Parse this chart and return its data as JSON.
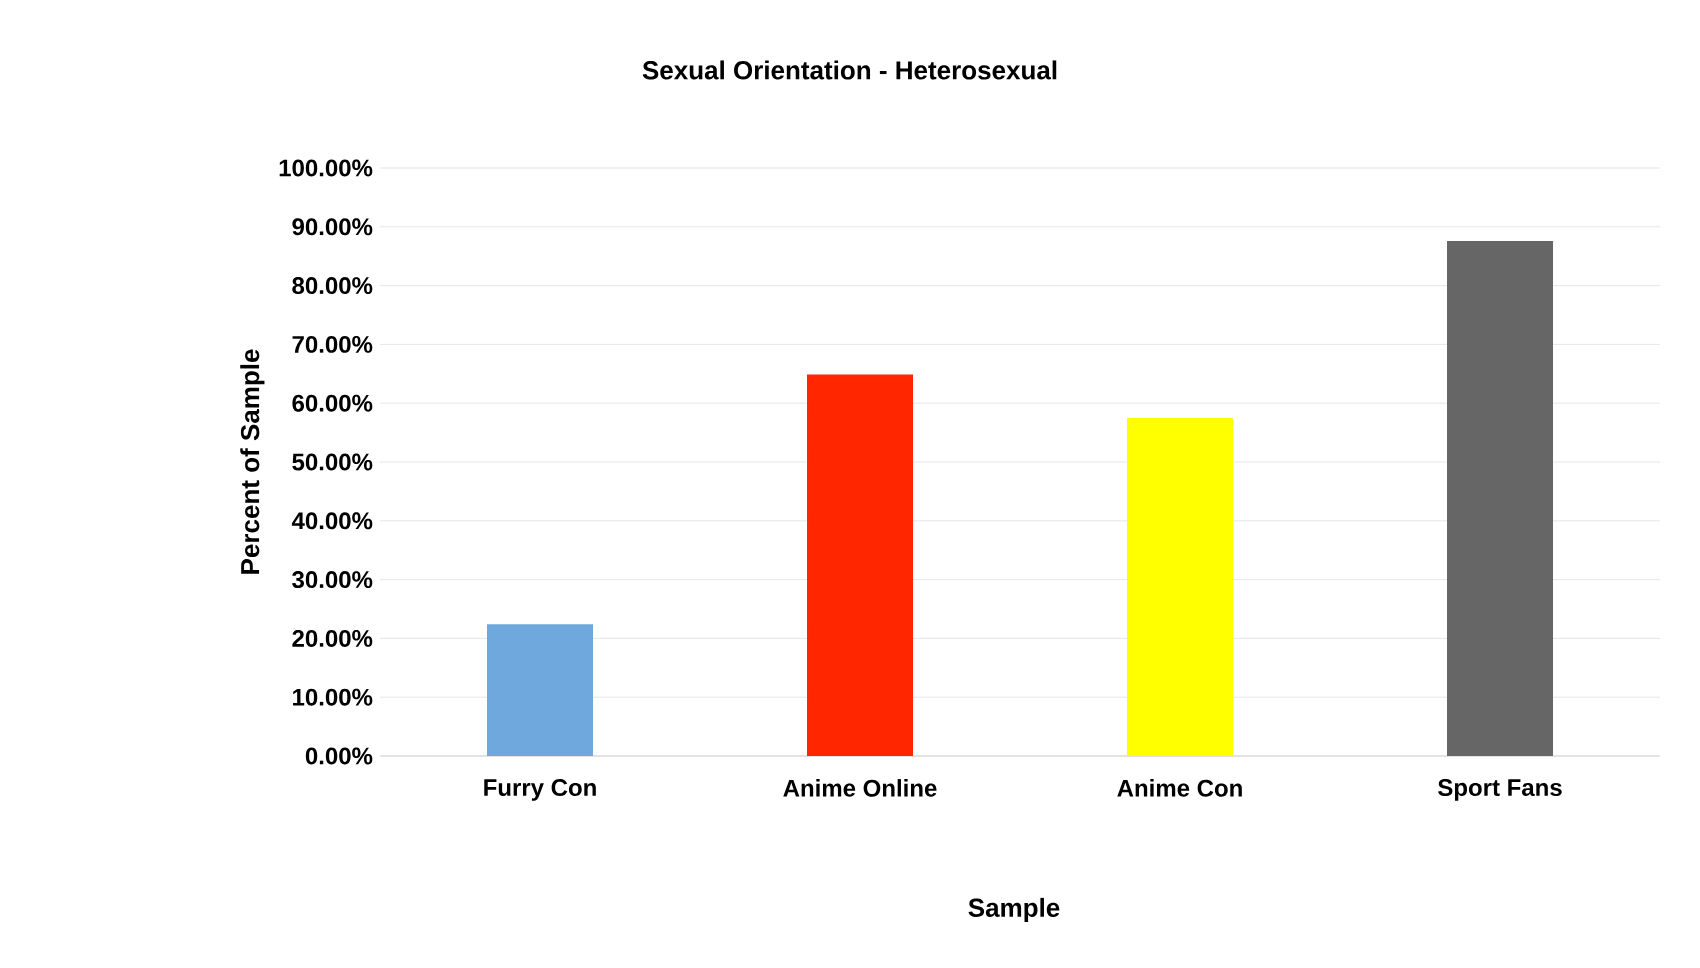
{
  "chart_data": {
    "type": "bar",
    "title": "Sexual Orientation - Heterosexual",
    "xlabel": "Sample",
    "ylabel": "Percent of Sample",
    "categories": [
      "Furry Con",
      "Anime Online",
      "Anime Con",
      "Sport Fans"
    ],
    "values": [
      22.4,
      64.9,
      57.5,
      87.6
    ],
    "colors": [
      "#6fa8dc",
      "#ff2600",
      "#ffff00",
      "#666666"
    ],
    "ylim": [
      0,
      100
    ],
    "yticks": [
      {
        "value": 0,
        "label": "0.00%"
      },
      {
        "value": 10,
        "label": "10.00%"
      },
      {
        "value": 20,
        "label": "20.00%"
      },
      {
        "value": 30,
        "label": "30.00%"
      },
      {
        "value": 40,
        "label": "40.00%"
      },
      {
        "value": 50,
        "label": "50.00%"
      },
      {
        "value": 60,
        "label": "60.00%"
      },
      {
        "value": 70,
        "label": "70.00%"
      },
      {
        "value": 80,
        "label": "80.00%"
      },
      {
        "value": 90,
        "label": "90.00%"
      },
      {
        "value": 100,
        "label": "100.00%"
      }
    ],
    "grid": "y"
  }
}
